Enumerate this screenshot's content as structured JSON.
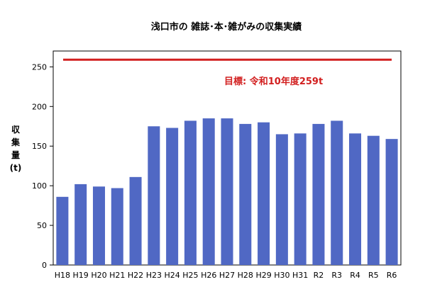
{
  "chart_data": {
    "type": "bar",
    "title": "浅口市の 雑誌･本･雑がみの収集実績",
    "ylabel_chars": [
      "収",
      "集",
      "量",
      "(t)"
    ],
    "xlabel": "",
    "categories": [
      "H18",
      "H19",
      "H20",
      "H21",
      "H22",
      "H23",
      "H24",
      "H25",
      "H26",
      "H27",
      "H28",
      "H29",
      "H30",
      "H31",
      "R2",
      "R3",
      "R4",
      "R5",
      "R6"
    ],
    "values": [
      86,
      102,
      99,
      97,
      111,
      175,
      173,
      182,
      185,
      185,
      178,
      180,
      165,
      166,
      178,
      182,
      166,
      163,
      159
    ],
    "ylim": [
      0,
      270
    ],
    "yticks": [
      0,
      50,
      100,
      150,
      200,
      250
    ],
    "target": {
      "value": 259,
      "label": "目標: 令和10年度259t"
    },
    "colors": {
      "bar": "#5068c4",
      "target": "#d21f1f",
      "axis": "#000000"
    },
    "grid": false,
    "legend": "none"
  }
}
